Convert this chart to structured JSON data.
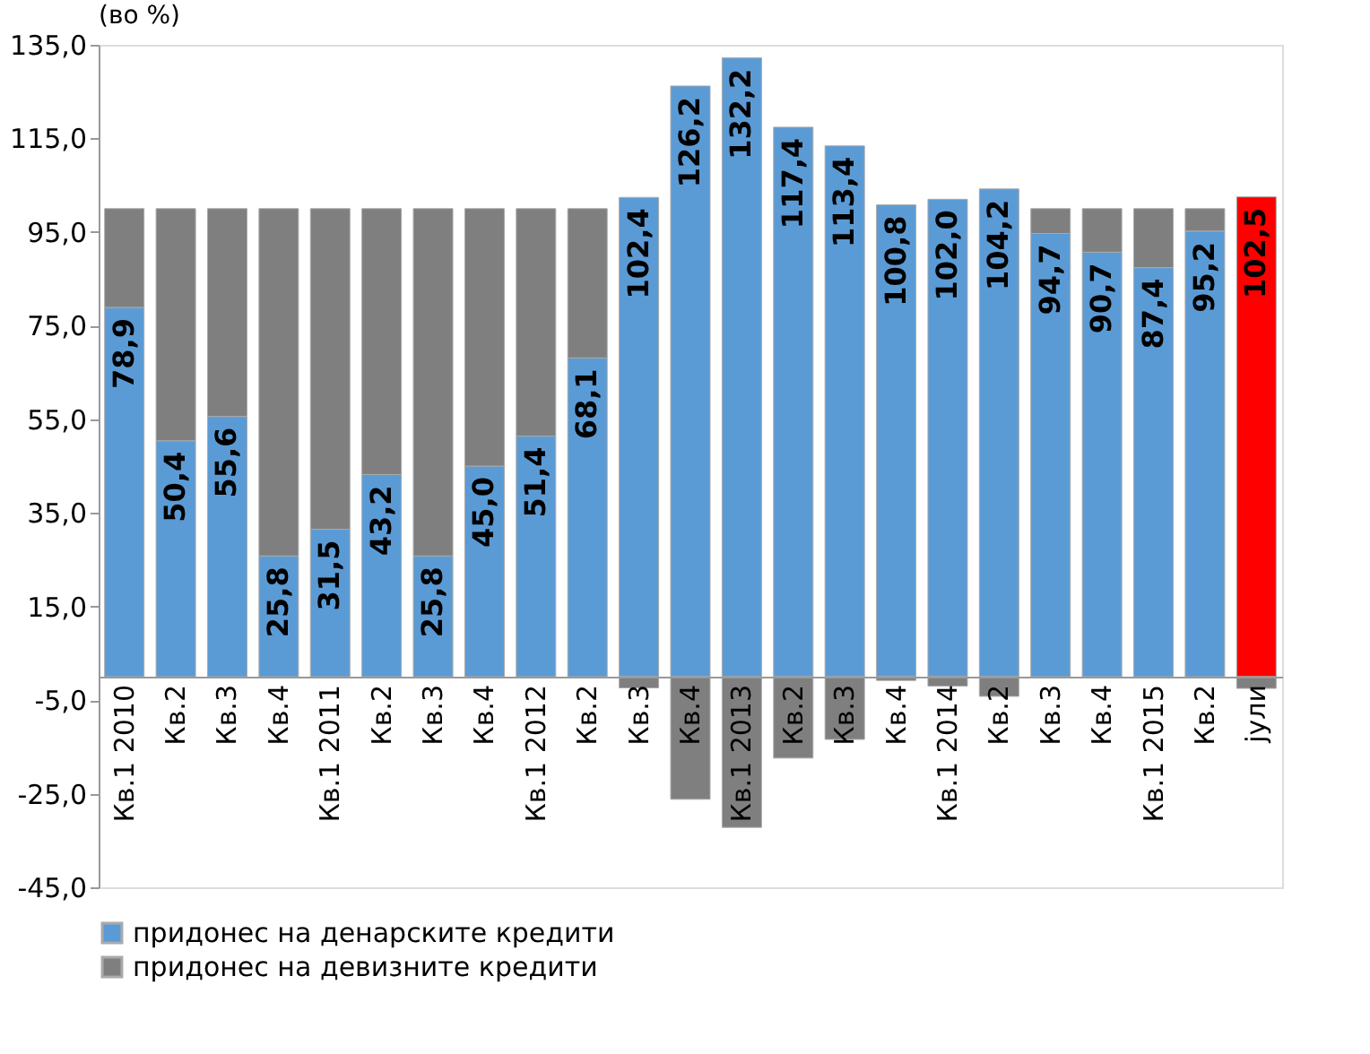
{
  "chart_data": {
    "type": "bar",
    "stacked": true,
    "title": "(во %)",
    "categories": [
      "Кв.1 2010",
      "Кв.2",
      "Кв.3",
      "Кв.4",
      "Кв.1 2011",
      "Кв.2",
      "Кв.3",
      "Кв.4",
      "Кв.1 2012",
      "Кв.2",
      "Кв.3",
      "Кв.4",
      "Кв.1 2013",
      "Кв.2",
      "Кв.3",
      "Кв.4",
      "Кв.1 2014",
      "Кв.2",
      "Кв.3",
      "Кв.4",
      "Кв.1 2015",
      "Кв.2",
      "јули"
    ],
    "series": [
      {
        "name": "придонес на денарските кредити",
        "color": "#5b9bd5",
        "colors": [
          "#5b9bd5",
          "#5b9bd5",
          "#5b9bd5",
          "#5b9bd5",
          "#5b9bd5",
          "#5b9bd5",
          "#5b9bd5",
          "#5b9bd5",
          "#5b9bd5",
          "#5b9bd5",
          "#5b9bd5",
          "#5b9bd5",
          "#5b9bd5",
          "#5b9bd5",
          "#5b9bd5",
          "#5b9bd5",
          "#5b9bd5",
          "#5b9bd5",
          "#5b9bd5",
          "#5b9bd5",
          "#5b9bd5",
          "#5b9bd5",
          "#ff0000"
        ],
        "values": [
          78.9,
          50.4,
          55.6,
          25.8,
          31.5,
          43.2,
          25.8,
          45.0,
          51.4,
          68.1,
          102.4,
          126.2,
          132.2,
          117.4,
          113.4,
          100.8,
          102.0,
          104.2,
          94.7,
          90.7,
          87.4,
          95.2,
          102.5
        ],
        "value_labels": [
          "78,9",
          "50,4",
          "55,6",
          "25,8",
          "31,5",
          "43,2",
          "25,8",
          "45,0",
          "51,4",
          "68,1",
          "102,4",
          "126,2",
          "132,2",
          "117,4",
          "113,4",
          "100,8",
          "102,0",
          "104,2",
          "94,7",
          "90,7",
          "87,4",
          "95,2",
          "102,5"
        ]
      },
      {
        "name": "придонес на девизните кредити",
        "color": "#7f7f7f",
        "values": [
          21.1,
          49.6,
          44.4,
          74.2,
          68.5,
          56.8,
          74.2,
          55.0,
          48.6,
          31.9,
          -2.4,
          -26.2,
          -32.2,
          -17.4,
          -13.4,
          -0.8,
          -2.0,
          -4.2,
          5.3,
          9.3,
          12.6,
          4.8,
          -2.5
        ]
      }
    ],
    "ylim": [
      -45,
      135
    ],
    "yticks": [
      {
        "value": -45,
        "label": "-45,0"
      },
      {
        "value": -25,
        "label": "-25,0"
      },
      {
        "value": -5,
        "label": "-5,0"
      },
      {
        "value": 15,
        "label": "15,0"
      },
      {
        "value": 35,
        "label": "35,0"
      },
      {
        "value": 55,
        "label": "55,0"
      },
      {
        "value": 75,
        "label": "75,0"
      },
      {
        "value": 95,
        "label": "95,0"
      },
      {
        "value": 115,
        "label": "115,0"
      },
      {
        "value": 135,
        "label": "135,0"
      }
    ],
    "grid": false,
    "legend": "bottom"
  }
}
